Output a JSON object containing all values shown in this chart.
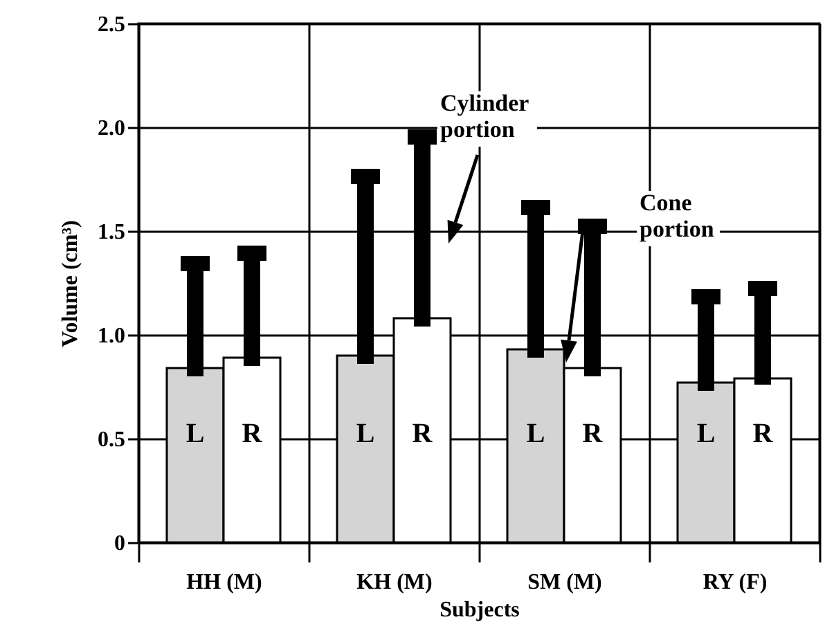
{
  "chart_data": {
    "type": "bar",
    "xlabel": "Subjects",
    "ylabel": "Volume (cm³)",
    "categories": [
      "HH (M)",
      "KH (M)",
      "SM (M)",
      "RY (F)"
    ],
    "series": [
      {
        "name": "L",
        "color": "#d4d4d4",
        "values": [
          0.84,
          0.9,
          0.93,
          0.77
        ],
        "errors": [
          [
            0.8,
            1.38
          ],
          [
            0.86,
            1.8
          ],
          [
            0.89,
            1.65
          ],
          [
            0.73,
            1.22
          ]
        ]
      },
      {
        "name": "R",
        "color": "#ffffff",
        "values": [
          0.89,
          1.08,
          0.84,
          0.79
        ],
        "errors": [
          [
            0.85,
            1.43
          ],
          [
            1.04,
            1.99
          ],
          [
            0.8,
            1.56
          ],
          [
            0.76,
            1.26
          ]
        ]
      }
    ],
    "ylim": [
      0,
      2.5
    ],
    "yticks": [
      0,
      0.5,
      {
        "value": 1,
        "label": "1.0"
      },
      1.5,
      {
        "value": 2,
        "label": "2.0"
      },
      2.5
    ],
    "grid": true,
    "annotations": [
      "Cylinder portion",
      "Cone portion"
    ]
  }
}
